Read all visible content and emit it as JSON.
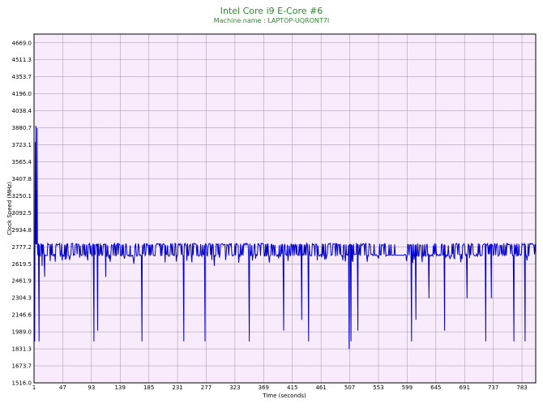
{
  "chart_data": {
    "type": "line",
    "title": "Intel Core i9 E-Core #6",
    "subtitle": "Machine name : LAPTOP-UQRONT7I",
    "xlabel": "Time (seconds)",
    "ylabel": "Clock Speed (MHz)",
    "xlim": [
      1,
      805
    ],
    "ylim": [
      1516.0,
      4750
    ],
    "x_ticks": [
      1,
      47,
      93,
      139,
      185,
      231,
      277,
      323,
      369,
      415,
      461,
      507,
      553,
      599,
      645,
      691,
      737,
      783
    ],
    "y_ticks": [
      1516.0,
      1673.7,
      1831.3,
      1989.0,
      2146.6,
      2304.3,
      2461.9,
      2619.5,
      2777.2,
      2934.8,
      3092.5,
      3250.1,
      3407.8,
      3565.4,
      3723.1,
      3880.7,
      4038.4,
      4196.0,
      4353.7,
      4511.3,
      4669.0
    ],
    "grid": true,
    "baseline_mhz": 2700,
    "high_mhz": 2800,
    "series": [
      {
        "values_summary": "Clock mostly oscillates between ~2700 and ~2800 MHz with frequent short dips; initial spike near 3900 MHz at start",
        "initial_spikes": [
          [
            3,
            3750
          ],
          [
            4,
            3900
          ],
          [
            5,
            3300
          ],
          [
            6,
            3880
          ]
        ],
        "dips": [
          [
            2,
            1900
          ],
          [
            9,
            1900
          ],
          [
            14,
            2600
          ],
          [
            18,
            2500
          ],
          [
            97,
            1900
          ],
          [
            103,
            2000
          ],
          [
            116,
            2500
          ],
          [
            174,
            1900
          ],
          [
            241,
            1900
          ],
          [
            275,
            1900
          ],
          [
            290,
            2600
          ],
          [
            346,
            1900
          ],
          [
            401,
            2000
          ],
          [
            430,
            2100
          ],
          [
            441,
            1900
          ],
          [
            506,
            1830
          ],
          [
            509,
            1900
          ],
          [
            520,
            2000
          ],
          [
            606,
            1900
          ],
          [
            613,
            2100
          ],
          [
            634,
            2300
          ],
          [
            659,
            2000
          ],
          [
            695,
            2300
          ],
          [
            725,
            1900
          ],
          [
            734,
            2300
          ],
          [
            770,
            1900
          ],
          [
            788,
            1900
          ]
        ]
      }
    ],
    "colors": {
      "line": "#0000cc",
      "plot_bg": "#f8ecfc",
      "grid": "#a090a8",
      "title": "#2e8b2e"
    }
  }
}
